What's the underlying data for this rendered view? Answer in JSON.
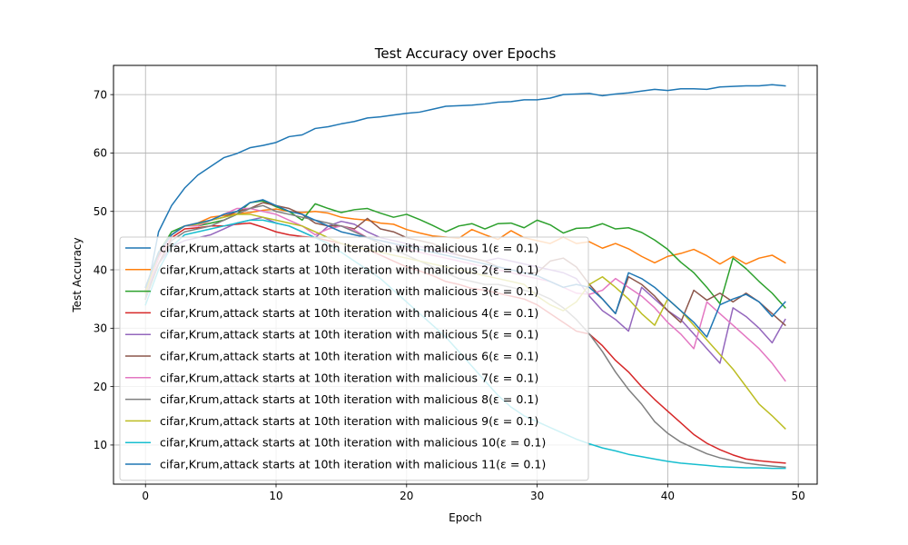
{
  "chart_data": {
    "type": "line",
    "title": "Test Accuracy over Epochs",
    "xlabel": "Epoch",
    "ylabel": "Test Accuracy",
    "xlim": [
      -2.45,
      51.45
    ],
    "ylim": [
      3.3,
      75.0
    ],
    "xticks": [
      0,
      10,
      20,
      30,
      40,
      50
    ],
    "yticks": [
      10,
      20,
      30,
      40,
      50,
      60,
      70
    ],
    "grid": true,
    "legend_location": "lower-left",
    "x": [
      0,
      1,
      2,
      3,
      4,
      5,
      6,
      7,
      8,
      9,
      10,
      11,
      12,
      13,
      14,
      15,
      16,
      17,
      18,
      19,
      20,
      21,
      22,
      23,
      24,
      25,
      26,
      27,
      28,
      29,
      30,
      31,
      32,
      33,
      34,
      35,
      36,
      37,
      38,
      39,
      40,
      41,
      42,
      43,
      44,
      45,
      46,
      47,
      48,
      49
    ],
    "series": [
      {
        "name": "cifar,Krum,attack starts at 10th iteration with malicious 1(ε = 0.1)",
        "color": "#1f77b4",
        "values": [
          35.0,
          46.5,
          51.0,
          54.0,
          56.2,
          57.7,
          59.2,
          59.9,
          60.9,
          61.3,
          61.8,
          62.8,
          63.1,
          64.2,
          64.5,
          65.0,
          65.4,
          66.0,
          66.2,
          66.5,
          66.8,
          67.0,
          67.5,
          68.0,
          68.1,
          68.2,
          68.4,
          68.7,
          68.8,
          69.1,
          69.1,
          69.4,
          70.0,
          70.1,
          70.2,
          69.8,
          70.1,
          70.3,
          70.6,
          70.9,
          70.7,
          71.0,
          71.0,
          70.9,
          71.3,
          71.4,
          71.5,
          71.5,
          71.7,
          71.5
        ]
      },
      {
        "name": "cifar,Krum,attack starts at 10th iteration with malicious 2(ε = 0.1)",
        "color": "#ff7f0e",
        "values": [
          36.0,
          42.0,
          46.0,
          47.5,
          48.0,
          49.0,
          49.3,
          49.6,
          49.8,
          50.2,
          50.4,
          50.0,
          49.8,
          50.0,
          49.7,
          49.0,
          48.7,
          48.5,
          48.0,
          47.8,
          46.9,
          46.3,
          45.8,
          45.6,
          45.4,
          46.9,
          46.0,
          45.2,
          46.7,
          45.5,
          45.0,
          44.5,
          45.6,
          44.5,
          44.8,
          43.7,
          44.5,
          43.6,
          42.3,
          41.2,
          42.3,
          42.8,
          43.5,
          42.4,
          41.0,
          42.3,
          41.0,
          42.0,
          42.5,
          41.2
        ]
      },
      {
        "name": "cifar,Krum,attack starts at 10th iteration with malicious 3(ε = 0.1)",
        "color": "#2ca02c",
        "values": [
          37.0,
          43.0,
          46.5,
          47.5,
          47.5,
          48.0,
          48.5,
          49.5,
          51.5,
          51.8,
          50.8,
          50.0,
          48.5,
          51.3,
          50.5,
          49.8,
          50.3,
          50.5,
          49.7,
          49.0,
          49.5,
          48.6,
          47.6,
          46.5,
          47.5,
          47.9,
          47.0,
          47.9,
          48.0,
          47.2,
          48.5,
          47.7,
          46.3,
          47.1,
          47.2,
          47.9,
          47.0,
          47.2,
          46.4,
          45.1,
          43.5,
          41.3,
          39.5,
          37.0,
          34.2,
          42.0,
          40.2,
          38.0,
          36.0,
          33.5
        ]
      },
      {
        "name": "cifar,Krum,attack starts at 10th iteration with malicious 4(ε = 0.1)",
        "color": "#d62728",
        "values": [
          35.0,
          41.0,
          45.5,
          47.0,
          47.2,
          47.5,
          47.5,
          47.8,
          48.0,
          47.3,
          46.5,
          46.0,
          45.7,
          45.5,
          45.0,
          44.5,
          44.0,
          43.5,
          42.5,
          41.5,
          40.5,
          39.8,
          39.0,
          38.0,
          37.5,
          36.8,
          36.5,
          36.0,
          35.5,
          35.0,
          34.0,
          32.5,
          31.0,
          29.5,
          29.0,
          27.0,
          24.5,
          22.5,
          20.0,
          17.8,
          15.8,
          13.8,
          11.8,
          10.3,
          9.2,
          8.3,
          7.6,
          7.3,
          7.1,
          6.9
        ]
      },
      {
        "name": "cifar,Krum,attack starts at 10th iteration with malicious 5(ε = 0.1)",
        "color": "#9467bd",
        "values": [
          36.0,
          41.0,
          44.0,
          45.0,
          45.5,
          46.0,
          47.0,
          48.0,
          48.5,
          49.0,
          48.0,
          47.5,
          46.5,
          45.5,
          47.5,
          48.3,
          47.8,
          46.5,
          45.5,
          45.0,
          44.5,
          44.0,
          43.5,
          43.0,
          42.5,
          42.0,
          41.5,
          42.0,
          41.5,
          41.0,
          40.5,
          40.0,
          39.5,
          38.5,
          35.5,
          33.0,
          31.5,
          29.5,
          37.0,
          35.0,
          33.0,
          31.5,
          29.0,
          26.5,
          24.0,
          33.5,
          32.0,
          30.0,
          27.5,
          31.5
        ]
      },
      {
        "name": "cifar,Krum,attack starts at 10th iteration with malicious 6(ε = 0.1)",
        "color": "#8c564b",
        "values": [
          36.5,
          42.5,
          46.0,
          47.5,
          47.5,
          48.5,
          49.0,
          50.0,
          50.5,
          51.5,
          51.0,
          50.5,
          49.5,
          48.0,
          47.5,
          47.5,
          47.0,
          48.8,
          47.0,
          46.5,
          45.5,
          45.0,
          44.5,
          43.5,
          42.5,
          42.0,
          41.5,
          40.5,
          40.0,
          39.5,
          39.5,
          41.5,
          42.0,
          40.5,
          37.5,
          35.0,
          32.5,
          38.8,
          37.5,
          35.5,
          33.0,
          31.0,
          36.5,
          34.8,
          36.0,
          34.5,
          36.0,
          34.5,
          32.5,
          30.5
        ]
      },
      {
        "name": "cifar,Krum,attack starts at 10th iteration with malicious 7(ε = 0.1)",
        "color": "#e377c2",
        "values": [
          36.0,
          42.0,
          46.0,
          47.5,
          47.5,
          48.5,
          49.5,
          50.5,
          50.5,
          50.0,
          49.5,
          48.5,
          47.5,
          46.0,
          47.0,
          47.5,
          46.8,
          45.5,
          45.0,
          44.5,
          43.5,
          43.0,
          42.5,
          42.0,
          41.5,
          41.0,
          40.5,
          40.0,
          39.5,
          39.0,
          38.5,
          38.0,
          37.0,
          36.0,
          35.8,
          36.5,
          38.5,
          37.0,
          35.5,
          33.5,
          31.0,
          29.0,
          26.5,
          34.5,
          32.5,
          30.5,
          28.5,
          26.5,
          24.0,
          21.0
        ]
      },
      {
        "name": "cifar,Krum,attack starts at 10th iteration with malicious 8(ε = 0.1)",
        "color": "#7f7f7f",
        "values": [
          35.0,
          41.0,
          45.0,
          46.5,
          47.0,
          47.5,
          48.5,
          49.5,
          50.5,
          51.0,
          50.0,
          49.5,
          49.0,
          48.5,
          48.0,
          47.5,
          46.5,
          45.5,
          44.5,
          43.5,
          42.5,
          41.5,
          40.5,
          39.5,
          38.5,
          38.0,
          37.5,
          37.5,
          37.0,
          36.5,
          36.0,
          35.0,
          33.5,
          31.5,
          29.0,
          26.0,
          22.5,
          19.5,
          17.0,
          14.0,
          12.0,
          10.5,
          9.5,
          8.5,
          7.8,
          7.3,
          6.9,
          6.6,
          6.4,
          6.2
        ]
      },
      {
        "name": "cifar,Krum,attack starts at 10th iteration with malicious 9(ε = 0.1)",
        "color": "#bcbd22",
        "values": [
          36.0,
          43.0,
          46.0,
          47.5,
          47.8,
          48.5,
          49.0,
          49.5,
          49.5,
          49.0,
          48.5,
          48.0,
          47.5,
          46.5,
          45.5,
          44.5,
          44.0,
          43.5,
          43.0,
          42.5,
          42.0,
          41.5,
          41.0,
          40.5,
          40.0,
          39.5,
          39.0,
          38.5,
          38.0,
          37.5,
          35.5,
          34.0,
          33.0,
          34.5,
          37.5,
          38.8,
          37.0,
          35.0,
          32.5,
          30.5,
          35.0,
          33.0,
          30.5,
          28.0,
          25.5,
          23.0,
          20.0,
          17.0,
          15.0,
          12.8
        ]
      },
      {
        "name": "cifar,Krum,attack starts at 10th iteration with malicious 10(ε = 0.1)",
        "color": "#17becf",
        "values": [
          34.0,
          40.0,
          44.0,
          46.0,
          46.5,
          47.0,
          47.5,
          48.0,
          48.5,
          48.5,
          48.0,
          47.5,
          46.5,
          45.5,
          44.5,
          43.0,
          41.5,
          40.0,
          38.5,
          36.5,
          34.5,
          32.5,
          30.5,
          28.5,
          26.0,
          23.5,
          21.0,
          18.5,
          16.5,
          15.0,
          14.0,
          13.0,
          12.0,
          11.0,
          10.2,
          9.5,
          9.0,
          8.4,
          8.0,
          7.6,
          7.2,
          6.9,
          6.7,
          6.5,
          6.3,
          6.2,
          6.1,
          6.1,
          6.0,
          6.0
        ]
      },
      {
        "name": "cifar,Krum,attack starts at 10th iteration with malicious 11(ε = 0.1)",
        "color": "#1f77b4",
        "values": [
          37.0,
          43.0,
          46.0,
          47.5,
          48.0,
          48.5,
          49.5,
          50.0,
          51.5,
          52.0,
          51.0,
          50.0,
          49.5,
          48.5,
          47.5,
          46.5,
          46.0,
          45.5,
          45.0,
          44.5,
          44.0,
          43.5,
          43.0,
          42.5,
          42.0,
          41.5,
          41.0,
          40.5,
          40.0,
          39.5,
          39.0,
          38.0,
          37.0,
          37.5,
          37.0,
          35.0,
          32.5,
          39.5,
          38.5,
          37.0,
          35.0,
          33.0,
          31.0,
          28.5,
          34.0,
          35.0,
          35.8,
          34.5,
          32.0,
          34.5
        ]
      }
    ]
  }
}
